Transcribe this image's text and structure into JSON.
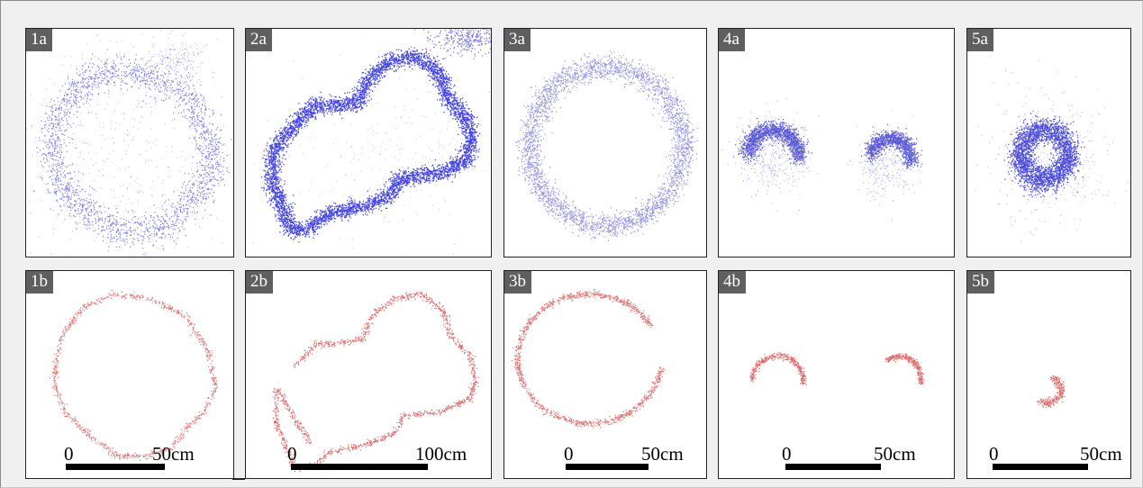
{
  "panels": {
    "p1a": {
      "label": "1a"
    },
    "p2a": {
      "label": "2a"
    },
    "p3a": {
      "label": "3a"
    },
    "p4a": {
      "label": "4a"
    },
    "p5a": {
      "label": "5a"
    },
    "p1b": {
      "label": "1b",
      "scale_zero": "0",
      "scale_length": "50cm"
    },
    "p2b": {
      "label": "2b",
      "scale_zero": "0",
      "scale_length": "100cm"
    },
    "p3b": {
      "label": "3b",
      "scale_zero": "0",
      "scale_length": "50cm"
    },
    "p4b": {
      "label": "4b",
      "scale_zero": "0",
      "scale_length": "50cm"
    },
    "p5b": {
      "label": "5b",
      "scale_zero": "0",
      "scale_length": "50cm"
    }
  },
  "colors": {
    "top_row_points": "#1a1ad6",
    "bottom_row_points": "#d42a2a",
    "label_background": "#5f5f5f",
    "panel_background": "#ffffff"
  }
}
